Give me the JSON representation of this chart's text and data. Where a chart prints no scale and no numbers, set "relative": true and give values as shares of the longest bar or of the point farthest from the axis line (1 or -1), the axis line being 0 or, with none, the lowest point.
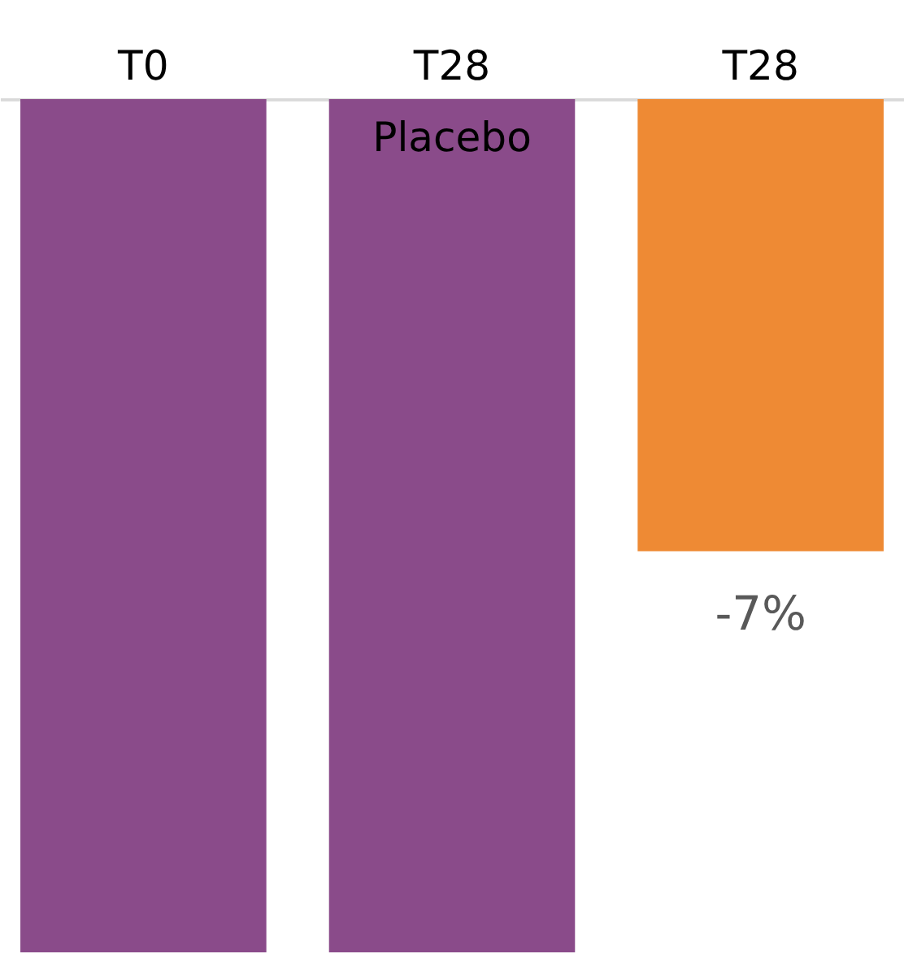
{
  "chart_data": {
    "type": "bar",
    "relative": true,
    "categories": [
      "T0",
      "T28",
      "T28"
    ],
    "values": [
      -1,
      -1,
      -0.53
    ],
    "colors": [
      "#8a4b8a",
      "#8a4b8a",
      "#ee8a34"
    ],
    "annotations": [
      "Placebo",
      "-7%"
    ]
  }
}
